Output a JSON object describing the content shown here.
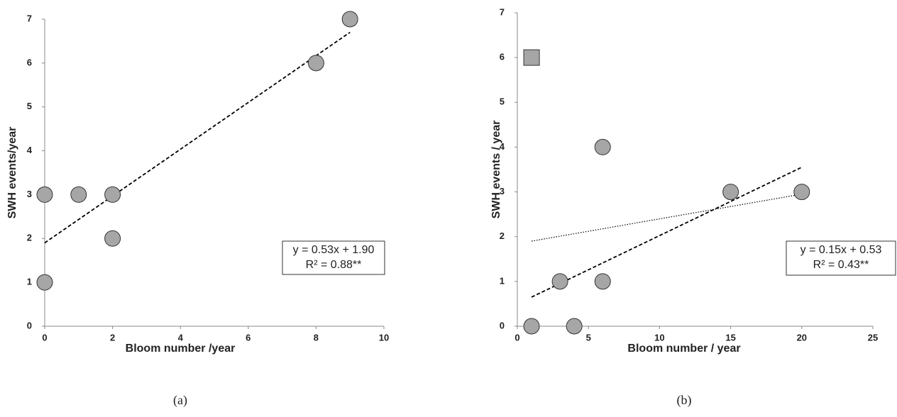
{
  "chart_data": [
    {
      "type": "scatter",
      "xlabel": "Bloom number /year",
      "ylabel": "SWH events/year",
      "caption": "(a)",
      "xlim": [
        0,
        10
      ],
      "xticks": [
        0,
        2,
        4,
        6,
        8,
        10
      ],
      "ylim": [
        0,
        7
      ],
      "yticks": [
        0,
        1,
        2,
        3,
        4,
        5,
        6,
        7
      ],
      "series": [
        {
          "marker": "circle",
          "color": "#a6a6a6",
          "x": [
            0,
            1,
            2,
            2,
            0,
            8,
            9
          ],
          "values": [
            3,
            3,
            3,
            2,
            1,
            6,
            7
          ]
        }
      ],
      "trendlines": [
        {
          "style": "dashed",
          "x": [
            0,
            9
          ],
          "values": [
            1.9,
            6.7
          ]
        }
      ],
      "annotation": [
        "y = 0.53x + 1.90",
        "R² = 0.88**"
      ]
    },
    {
      "type": "scatter",
      "xlabel": "Bloom number / year",
      "ylabel": "SWH events / year",
      "caption": "(b)",
      "xlim": [
        0,
        25
      ],
      "xticks": [
        0,
        5,
        10,
        15,
        20,
        25
      ],
      "ylim": [
        0,
        7
      ],
      "yticks": [
        0,
        1,
        2,
        3,
        4,
        5,
        6,
        7
      ],
      "series": [
        {
          "marker": "circle",
          "color": "#a6a6a6",
          "x": [
            1,
            4,
            3,
            6,
            6,
            15,
            20
          ],
          "values": [
            0,
            0,
            1,
            1,
            4,
            3,
            3
          ]
        },
        {
          "marker": "square",
          "color": "#a6a6a6",
          "x": [
            1
          ],
          "values": [
            6
          ]
        }
      ],
      "trendlines": [
        {
          "style": "dashed",
          "x": [
            1,
            20
          ],
          "values": [
            0.65,
            3.55
          ]
        },
        {
          "style": "dotted",
          "x": [
            1,
            20
          ],
          "values": [
            1.9,
            2.95
          ]
        }
      ],
      "annotation": [
        "y = 0.15x + 0.53",
        "R² = 0.43**"
      ]
    }
  ]
}
